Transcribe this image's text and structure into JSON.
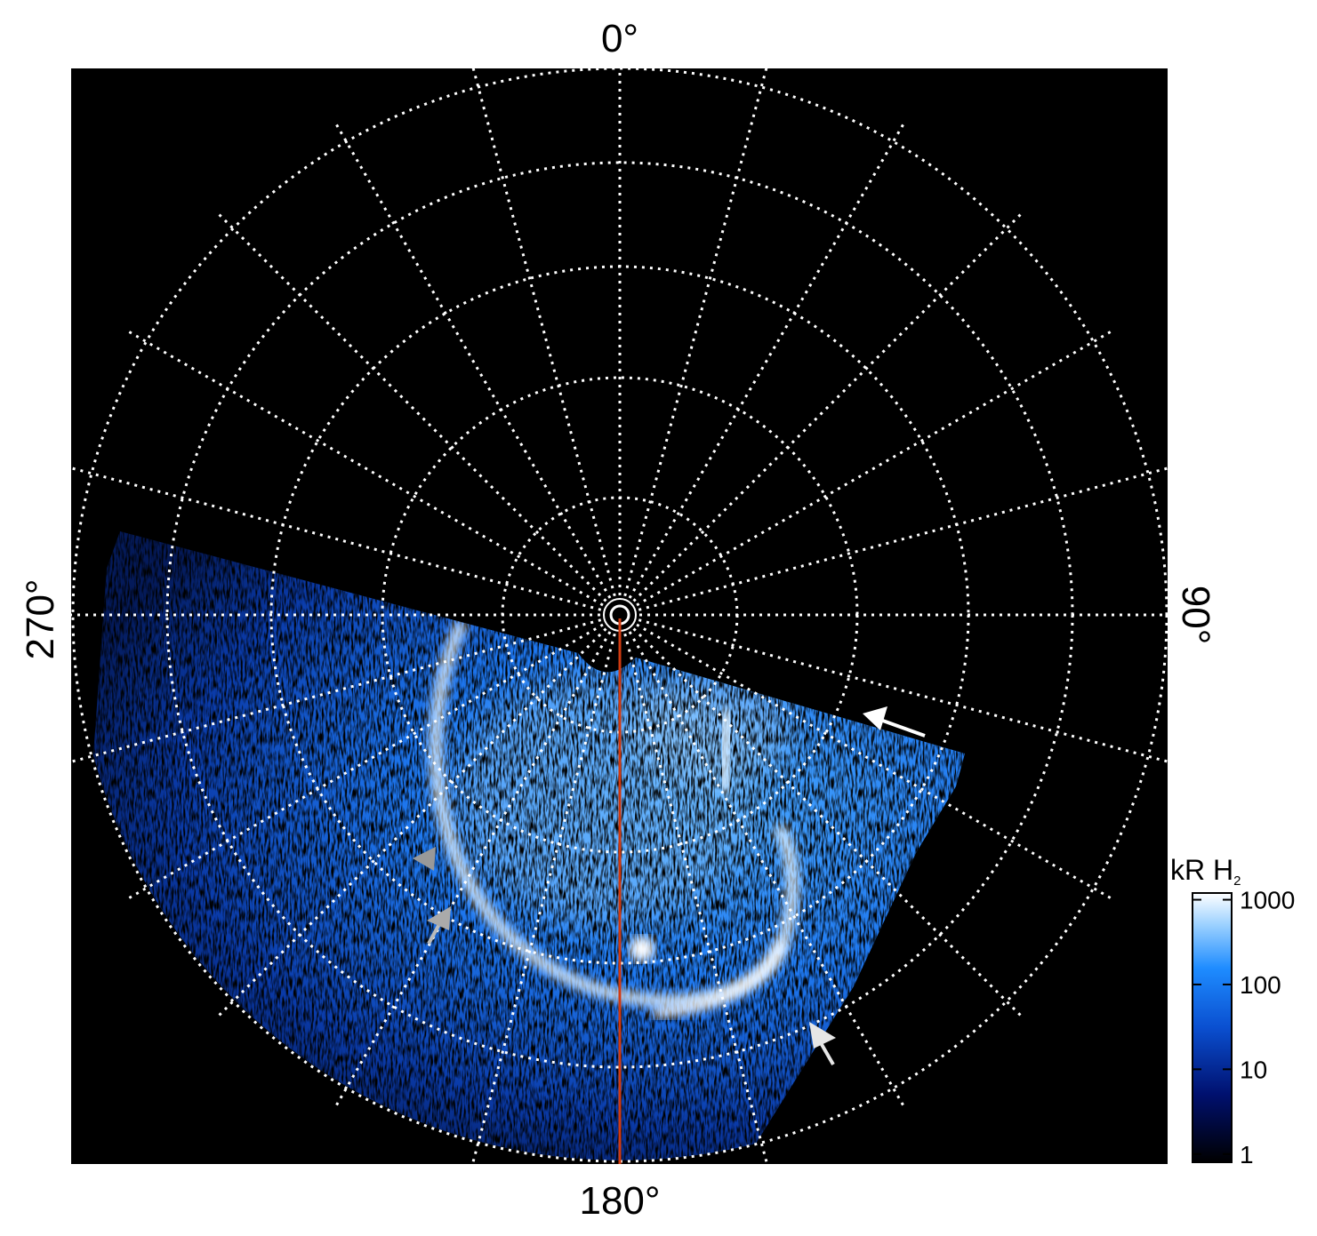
{
  "axis_labels": {
    "top": "0°",
    "right": "90°",
    "bottom": "180°",
    "left": "270°"
  },
  "colorbar": {
    "title": "kR H",
    "title_sub": "2",
    "scale": "log",
    "lim": [
      0.8,
      1200
    ],
    "ticks": [
      1,
      10,
      100,
      1000
    ]
  }
}
